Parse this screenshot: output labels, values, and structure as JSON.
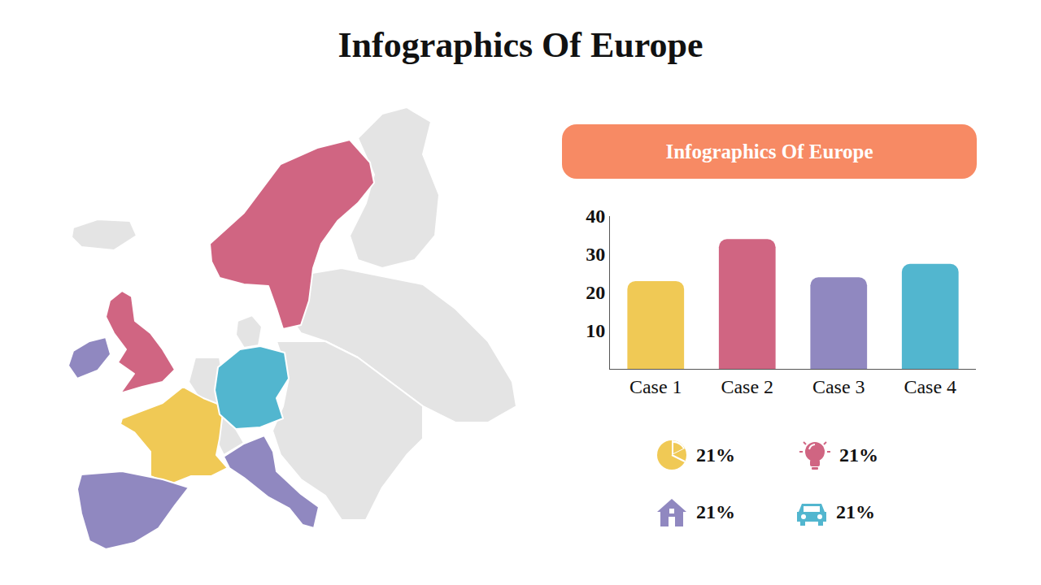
{
  "title": "Infographics Of Europe",
  "chart_data": {
    "type": "bar",
    "title": "Infographics Of Europe",
    "categories": [
      "Case 1",
      "Case 2",
      "Case 3",
      "Case 4"
    ],
    "values": [
      23,
      34,
      24,
      27.5
    ],
    "colors": [
      "#f0c955",
      "#d06582",
      "#9088c0",
      "#52b6cf"
    ],
    "ylim": [
      0,
      40
    ],
    "yticks": [
      10,
      20,
      30,
      40
    ],
    "grid": false
  },
  "stats": [
    "21%",
    "21%",
    "21%",
    "21%"
  ]
}
